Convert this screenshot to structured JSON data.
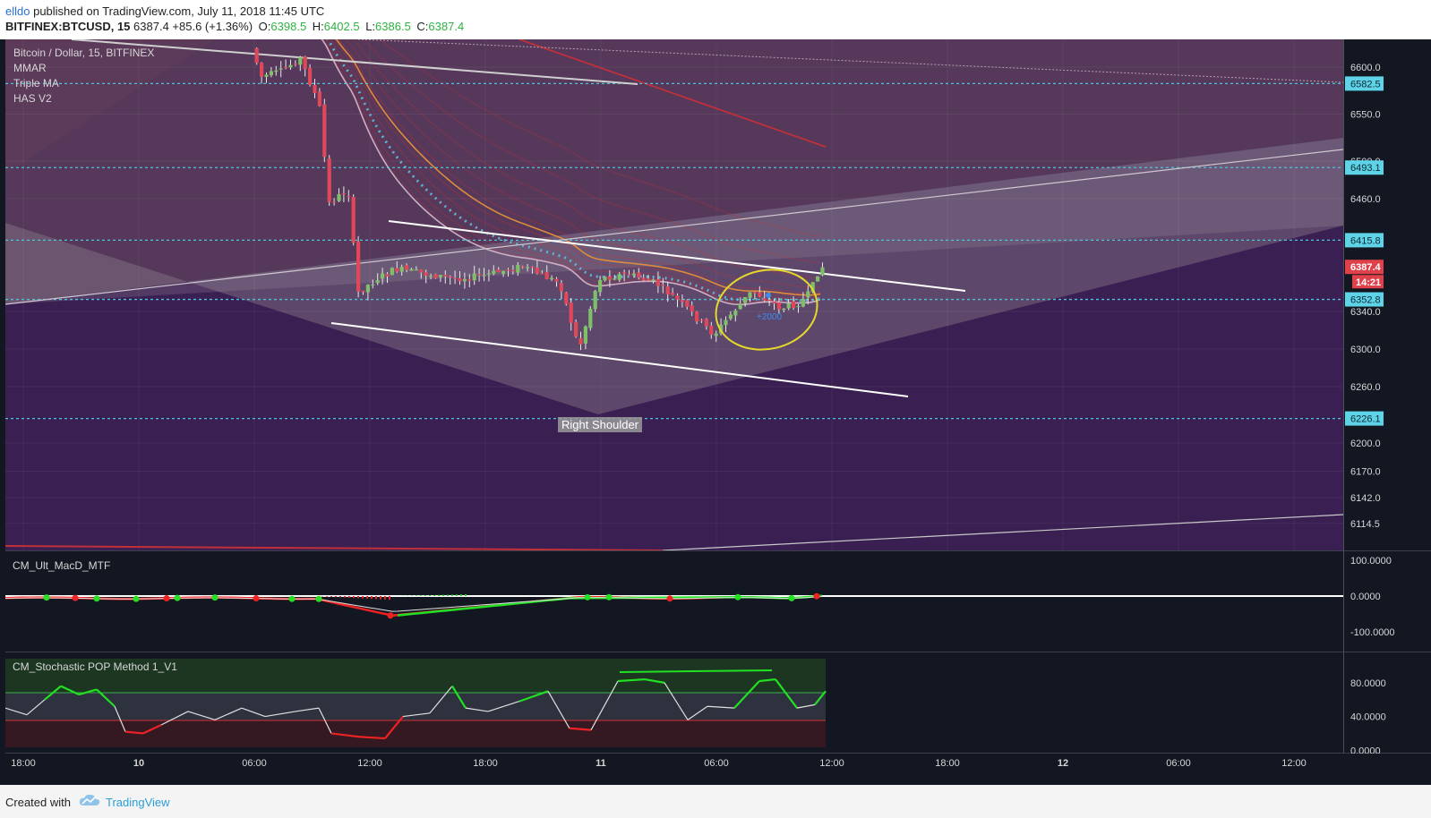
{
  "header": {
    "author": "elldo",
    "published": "published on TradingView.com, July 11, 2018 11:45 UTC",
    "symbol": "BITFINEX:BTCUSD, 15",
    "last": "6387.4",
    "change": "+85.6 (+1.36%)",
    "o_label": "O:",
    "o_value": "6398.5",
    "h_label": "H:",
    "h_value": "6402.5",
    "l_label": "L:",
    "l_value": "6386.5",
    "c_label": "C:",
    "c_value": "6387.4"
  },
  "legend": {
    "title": "Bitcoin / Dollar, 15, BITFINEX",
    "indicators": [
      "MMAR",
      "Triple MA",
      "HAS V2"
    ]
  },
  "annotations": {
    "right_shoulder": "Right Shoulder",
    "circle_note": "+2000"
  },
  "price_axis": {
    "ticks": [
      "6600.0",
      "6550.0",
      "6500.0",
      "6460.0",
      "6340.0",
      "6300.0",
      "6260.0",
      "6200.0",
      "6170.0",
      "6142.0",
      "6114.5"
    ],
    "levels": [
      "6582.5",
      "6493.1",
      "6415.8",
      "6352.8",
      "6226.1"
    ],
    "current_price": "6387.4",
    "countdown": "14:21"
  },
  "macd_panel": {
    "title": "CM_Ult_MacD_MTF",
    "ticks": [
      "100.0000",
      "0.0000",
      "-100.0000"
    ]
  },
  "stoch_panel": {
    "title": "CM_Stochastic POP Method 1_V1",
    "ticks": [
      "80.0000",
      "40.0000",
      "0.0000"
    ]
  },
  "time_axis": {
    "ticks": [
      "18:00",
      "10",
      "06:00",
      "12:00",
      "18:00",
      "11",
      "06:00",
      "12:00",
      "18:00",
      "12",
      "06:00",
      "12:00"
    ]
  },
  "footer": {
    "created_with": "Created with",
    "brand": "TradingView"
  },
  "colors": {
    "bg_dark": "#131722",
    "bull": "#7fbf6a",
    "bear": "#e0485a",
    "level_line": "#4fc3d9",
    "ma_red": "#c0303a",
    "ma_orange": "#e08a3a",
    "ellipse": "#e5d82a",
    "stoch_green": "#22e022",
    "stoch_red": "#ee2222"
  },
  "chart_data": {
    "type": "candlestick",
    "title": "Bitcoin / Dollar, 15, BITFINEX",
    "symbol": "BITFINEX:BTCUSD",
    "timeframe": "15",
    "ohlc_last": {
      "open": 6398.5,
      "high": 6402.5,
      "low": 6386.5,
      "close": 6387.4
    },
    "price_path": [
      {
        "t": "2018-07-10 06:00",
        "price": 6620
      },
      {
        "t": "2018-07-10 06:30",
        "price": 6590
      },
      {
        "t": "2018-07-10 07:30",
        "price": 6595
      },
      {
        "t": "2018-07-10 08:30",
        "price": 6610
      },
      {
        "t": "2018-07-10 09:30",
        "price": 6560
      },
      {
        "t": "2018-07-10 10:00",
        "price": 6455
      },
      {
        "t": "2018-07-10 11:00",
        "price": 6470
      },
      {
        "t": "2018-07-10 11:30",
        "price": 6360
      },
      {
        "t": "2018-07-10 12:30",
        "price": 6375
      },
      {
        "t": "2018-07-10 13:30",
        "price": 6385
      },
      {
        "t": "2018-07-10 15:00",
        "price": 6380
      },
      {
        "t": "2018-07-10 16:30",
        "price": 6375
      },
      {
        "t": "2018-07-10 18:00",
        "price": 6378
      },
      {
        "t": "2018-07-10 20:00",
        "price": 6388
      },
      {
        "t": "2018-07-10 22:00",
        "price": 6370
      },
      {
        "t": "2018-07-10 23:00",
        "price": 6300
      },
      {
        "t": "2018-07-11 00:00",
        "price": 6375
      },
      {
        "t": "2018-07-11 01:30",
        "price": 6380
      },
      {
        "t": "2018-07-11 03:00",
        "price": 6370
      },
      {
        "t": "2018-07-11 04:30",
        "price": 6345
      },
      {
        "t": "2018-07-11 06:00",
        "price": 6315
      },
      {
        "t": "2018-07-11 07:00",
        "price": 6340
      },
      {
        "t": "2018-07-11 08:00",
        "price": 6362
      },
      {
        "t": "2018-07-11 09:30",
        "price": 6343
      },
      {
        "t": "2018-07-11 10:30",
        "price": 6350
      },
      {
        "t": "2018-07-11 11:00",
        "price": 6360
      },
      {
        "t": "2018-07-11 11:30",
        "price": 6387.4
      }
    ],
    "horizontal_levels": [
      6582.5,
      6493.1,
      6415.8,
      6352.8,
      6226.1
    ],
    "ylim": [
      6090,
      6640
    ],
    "macd_ylim": [
      -150,
      150
    ],
    "stoch_levels": {
      "upper": 60,
      "lower": 30
    },
    "stoch_ylim": [
      -5,
      100
    ]
  }
}
